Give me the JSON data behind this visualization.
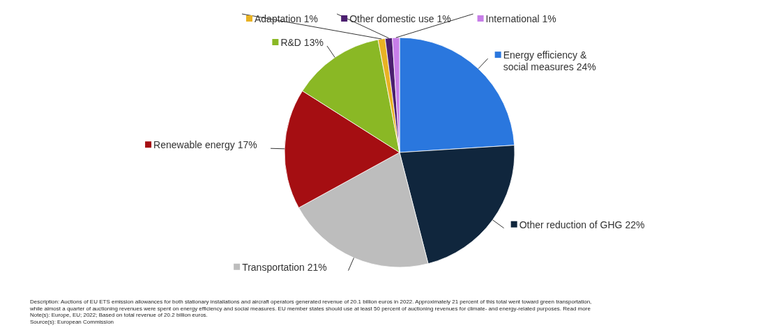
{
  "chart_data": {
    "type": "pie",
    "categories": [
      "Energy efficiency & social measures",
      "Other reduction of GHG",
      "Transportation",
      "Renewable energy",
      "R&D",
      "Adaptation",
      "Other domestic use",
      "International"
    ],
    "values": [
      24,
      22,
      21,
      17,
      13,
      1,
      1,
      1
    ],
    "value_labels": [
      "24%",
      "22%",
      "21%",
      "17%",
      "13%",
      "1%",
      "1%",
      "1%"
    ],
    "colors": [
      "#2a77de",
      "#10263d",
      "#bdbdbd",
      "#a50e12",
      "#8ab825",
      "#e8b223",
      "#4b1f6f",
      "#c77ee8"
    ],
    "legend": "right",
    "annotations": [
      "Description: Auctions of EU ETS emission allowances for both stationary installations and aircraft operators generated revenue of 20.1 billion euros in 2022. Approximately 21 percent of this total went toward green transportation, while almost a quarter of auctioning revenues were spent on energy efficiency and social measures. EU member states should use at least 50 percent of auctioning revenues for climate- and energy-related purposes. Read more",
      "Note(s): Europe, EU; 2022; Based on total revenue of 20.2 billion euros.",
      "Source(s): European Commission"
    ]
  }
}
